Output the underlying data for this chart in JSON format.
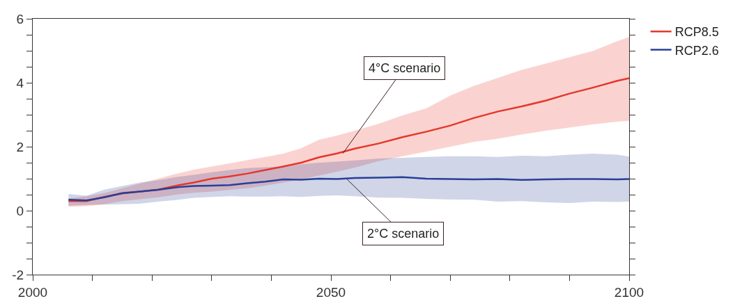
{
  "chart_data": {
    "type": "line",
    "x": [
      2006,
      2009,
      2012,
      2015,
      2018,
      2021,
      2024,
      2027,
      2030,
      2033,
      2036,
      2039,
      2042,
      2045,
      2048,
      2051,
      2054,
      2058,
      2062,
      2066,
      2070,
      2074,
      2078,
      2082,
      2086,
      2090,
      2094,
      2098,
      2100
    ],
    "series": [
      {
        "name": "RCP8.5",
        "color": "#e8352b",
        "values": [
          0.3,
          0.3,
          0.43,
          0.54,
          0.6,
          0.66,
          0.78,
          0.88,
          1.0,
          1.07,
          1.16,
          1.27,
          1.38,
          1.5,
          1.67,
          1.79,
          1.94,
          2.1,
          2.3,
          2.47,
          2.66,
          2.9,
          3.1,
          3.26,
          3.44,
          3.66,
          3.85,
          4.06,
          4.14
        ],
        "lower": [
          0.12,
          0.14,
          0.2,
          0.3,
          0.36,
          0.42,
          0.5,
          0.56,
          0.6,
          0.65,
          0.7,
          0.78,
          0.88,
          0.98,
          1.1,
          1.22,
          1.35,
          1.55,
          1.7,
          1.85,
          2.0,
          2.15,
          2.25,
          2.38,
          2.5,
          2.6,
          2.7,
          2.78,
          2.81
        ],
        "upper": [
          0.38,
          0.45,
          0.55,
          0.7,
          0.85,
          1.0,
          1.15,
          1.28,
          1.38,
          1.48,
          1.58,
          1.68,
          1.78,
          1.95,
          2.22,
          2.35,
          2.5,
          2.72,
          2.98,
          3.2,
          3.6,
          3.9,
          4.15,
          4.4,
          4.6,
          4.8,
          5.0,
          5.3,
          5.43
        ]
      },
      {
        "name": "RCP2.6",
        "color": "#283f96",
        "values": [
          0.34,
          0.32,
          0.42,
          0.55,
          0.6,
          0.65,
          0.73,
          0.77,
          0.78,
          0.8,
          0.86,
          0.91,
          0.98,
          0.97,
          1.0,
          0.99,
          1.02,
          1.03,
          1.05,
          1.0,
          0.99,
          0.98,
          0.99,
          0.96,
          0.98,
          0.99,
          0.99,
          0.98,
          0.99
        ],
        "lower": [
          0.16,
          0.18,
          0.19,
          0.2,
          0.22,
          0.28,
          0.33,
          0.4,
          0.43,
          0.45,
          0.44,
          0.44,
          0.45,
          0.43,
          0.46,
          0.48,
          0.45,
          0.41,
          0.4,
          0.37,
          0.35,
          0.34,
          0.28,
          0.3,
          0.26,
          0.24,
          0.28,
          0.27,
          0.28
        ],
        "upper": [
          0.52,
          0.47,
          0.66,
          0.77,
          0.88,
          0.95,
          1.05,
          1.12,
          1.2,
          1.27,
          1.33,
          1.36,
          1.38,
          1.45,
          1.5,
          1.53,
          1.57,
          1.63,
          1.65,
          1.68,
          1.7,
          1.7,
          1.68,
          1.72,
          1.7,
          1.75,
          1.78,
          1.75,
          1.69
        ]
      }
    ],
    "annotations": [
      {
        "text": "4°C scenario",
        "x": 2052,
        "y": 1.79
      },
      {
        "text": "2°C scenario",
        "x": 2052.7,
        "y": 0.98
      }
    ],
    "xlim": [
      2000,
      2100
    ],
    "xticks": [
      2000,
      {
        "value": 2010,
        "label": null
      },
      {
        "value": 2020,
        "label": null
      },
      {
        "value": 2030,
        "label": null
      },
      {
        "value": 2040,
        "label": null
      },
      2050,
      {
        "value": 2060,
        "label": null
      },
      {
        "value": 2070,
        "label": null
      },
      {
        "value": 2080,
        "label": null
      },
      {
        "value": 2090,
        "label": null
      },
      2100
    ],
    "ylim": [
      -2,
      6
    ],
    "yticks": [
      -2,
      {
        "value": -1.5,
        "label": null
      },
      {
        "value": -1,
        "label": null
      },
      {
        "value": -0.5,
        "label": null
      },
      0,
      {
        "value": 0.5,
        "label": null
      },
      {
        "value": 1,
        "label": null
      },
      {
        "value": 1.5,
        "label": null
      },
      2,
      {
        "value": 2.5,
        "label": null
      },
      {
        "value": 3,
        "label": null
      },
      {
        "value": 3.5,
        "label": null
      },
      4,
      {
        "value": 4.5,
        "label": null
      },
      {
        "value": 5,
        "label": null
      },
      {
        "value": 5.5,
        "label": null
      },
      6
    ],
    "legend": "top right",
    "marker": "none",
    "line_style": "solid"
  }
}
